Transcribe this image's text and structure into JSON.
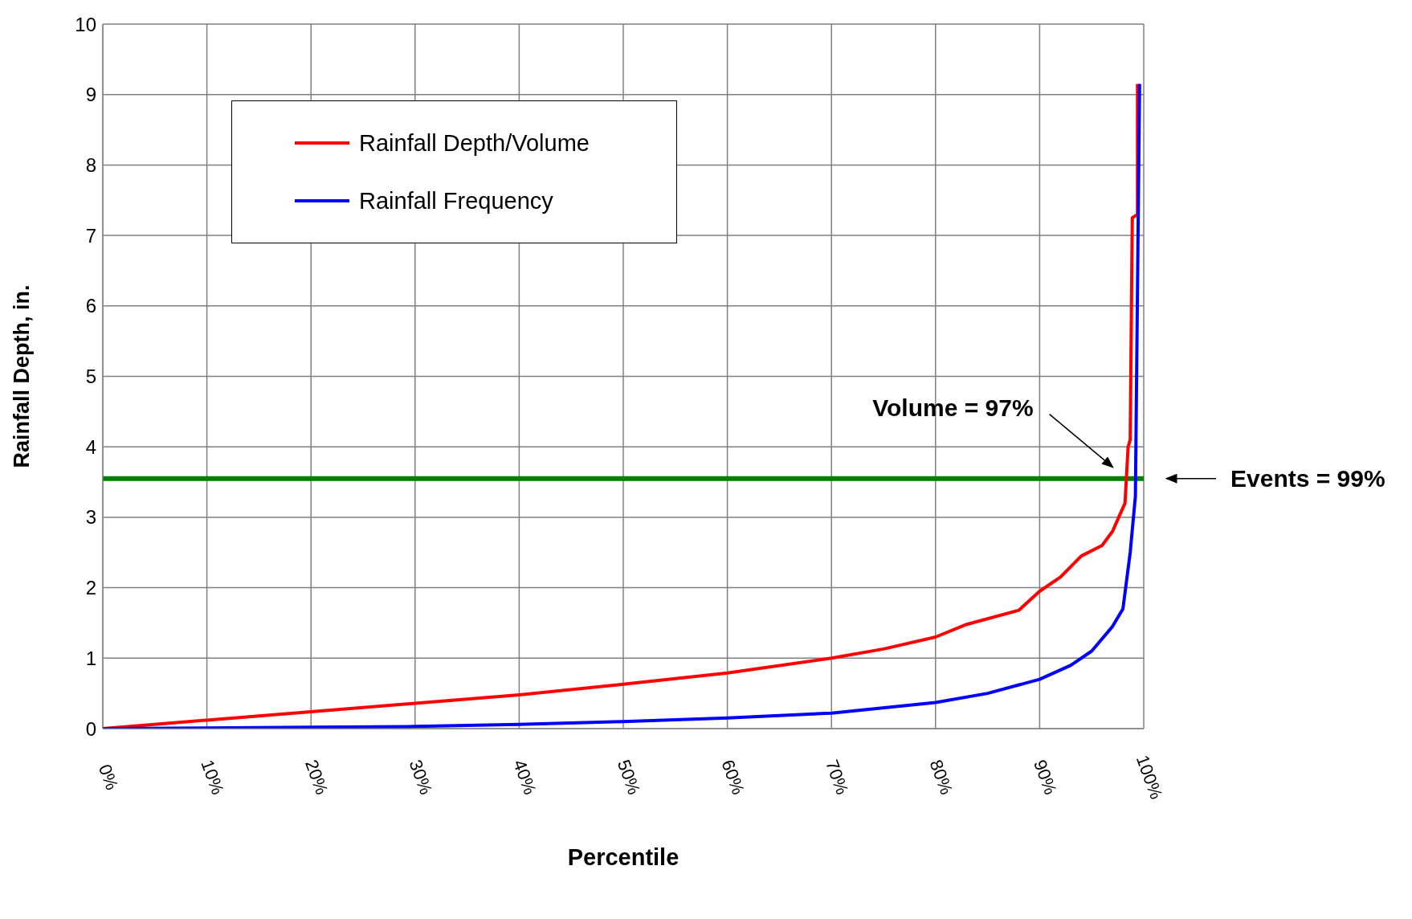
{
  "chart_data": {
    "type": "line",
    "xlabel": "Percentile",
    "ylabel": "Rainfall Depth, in.",
    "xlim": [
      0,
      100
    ],
    "xticks": [
      {
        "value": 0,
        "label": "0%"
      },
      {
        "value": 10,
        "label": "10%"
      },
      {
        "value": 20,
        "label": "20%"
      },
      {
        "value": 30,
        "label": "30%"
      },
      {
        "value": 40,
        "label": "40%"
      },
      {
        "value": 50,
        "label": "50%"
      },
      {
        "value": 60,
        "label": "60%"
      },
      {
        "value": 70,
        "label": "70%"
      },
      {
        "value": 80,
        "label": "80%"
      },
      {
        "value": 90,
        "label": "90%"
      },
      {
        "value": 100,
        "label": "100%"
      }
    ],
    "ylim": [
      0,
      10
    ],
    "yticks": [
      0,
      1,
      2,
      3,
      4,
      5,
      6,
      7,
      8,
      9,
      10
    ],
    "grid": true,
    "legend": "top left",
    "marker": "none",
    "line_style": "solid",
    "series": [
      {
        "name": "Rainfall Depth/Volume",
        "color": "#ff0000",
        "x": [
          0,
          10,
          20,
          30,
          40,
          50,
          60,
          70,
          75,
          80,
          83,
          88,
          90,
          92,
          94,
          96,
          97,
          97.6,
          98.2,
          98.5,
          98.7,
          98.9,
          99.4,
          99.4
        ],
        "values": [
          0,
          0.12,
          0.24,
          0.36,
          0.48,
          0.63,
          0.79,
          1.0,
          1.13,
          1.3,
          1.48,
          1.68,
          1.95,
          2.15,
          2.45,
          2.6,
          2.8,
          3.0,
          3.2,
          4.0,
          4.1,
          7.25,
          7.3,
          9.15
        ]
      },
      {
        "name": "Rainfall Frequency",
        "color": "#0000ff",
        "x": [
          0,
          20,
          30,
          40,
          50,
          60,
          70,
          80,
          85,
          90,
          93,
          95,
          97,
          98,
          98.7,
          99.2,
          99.6
        ],
        "values": [
          0,
          0.02,
          0.03,
          0.06,
          0.1,
          0.15,
          0.22,
          0.37,
          0.5,
          0.7,
          0.9,
          1.1,
          1.45,
          1.7,
          2.5,
          3.3,
          9.15
        ]
      }
    ],
    "ref_lines": [
      {
        "axis": "y",
        "value": 3.55,
        "color": "#008000"
      }
    ],
    "annotations": [
      "Volume = 97%",
      "Events = 99%"
    ]
  }
}
